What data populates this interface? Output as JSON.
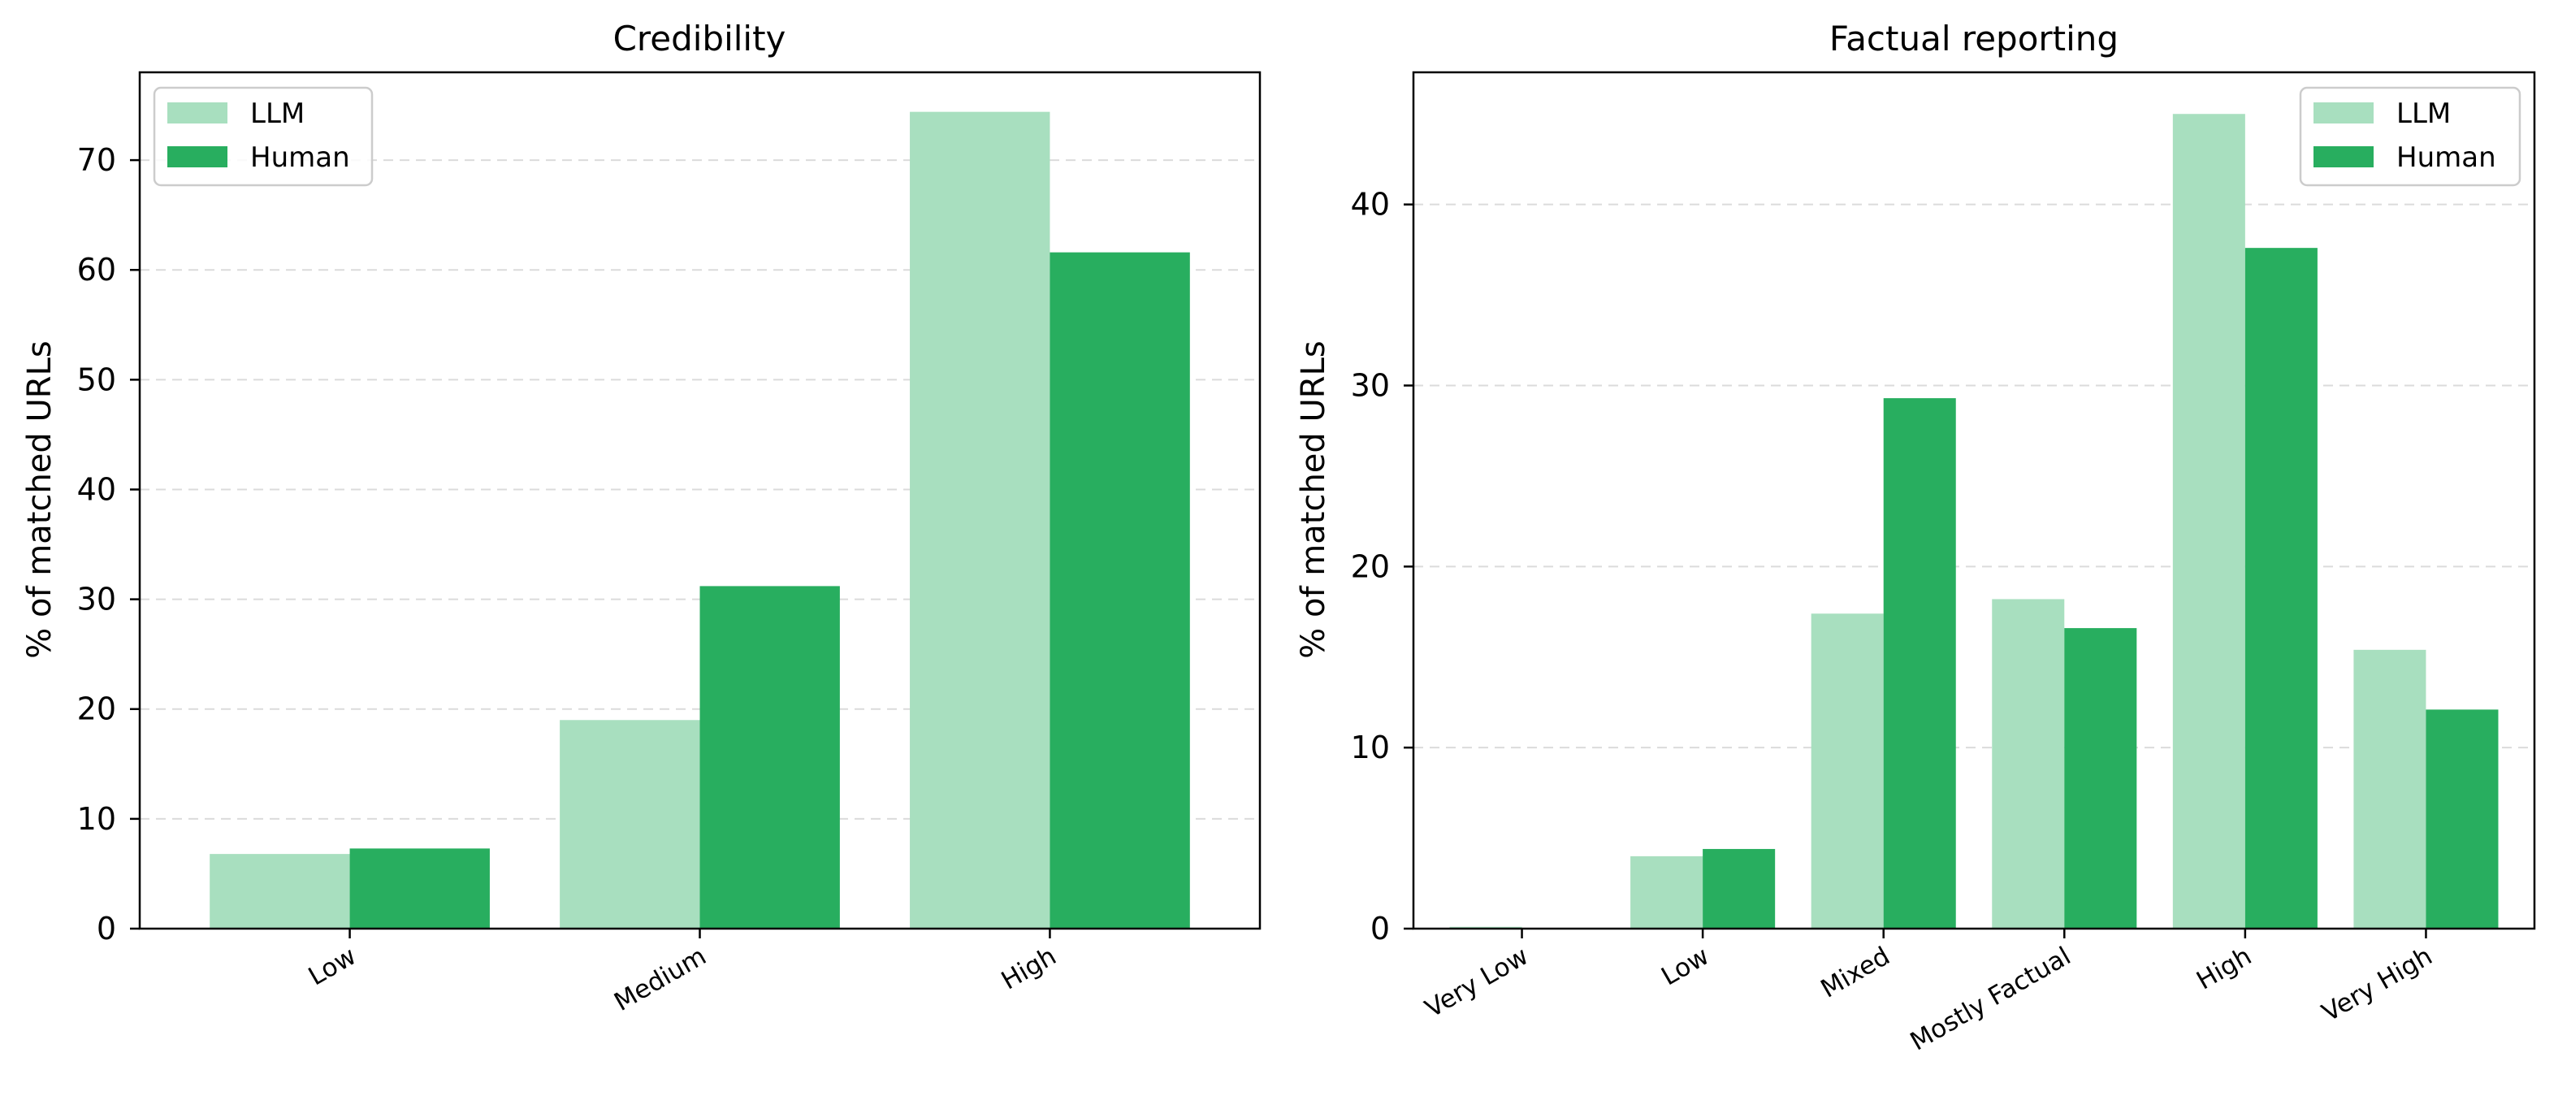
{
  "chart_data": [
    {
      "type": "bar",
      "title": "Credibility",
      "xlabel": "",
      "ylabel": "% of matched URLs",
      "categories": [
        "Low",
        "Medium",
        "High"
      ],
      "series": [
        {
          "name": "LLM",
          "values": [
            6.8,
            19.0,
            74.4
          ]
        },
        {
          "name": "Human",
          "values": [
            7.3,
            31.2,
            61.6
          ]
        }
      ],
      "ylim": [
        0,
        78
      ],
      "yticks": [
        0,
        10,
        20,
        30,
        40,
        50,
        60,
        70
      ],
      "legend": "top-left",
      "grid": "y-dashed"
    },
    {
      "type": "bar",
      "title": "Factual reporting",
      "xlabel": "",
      "ylabel": "% of matched URLs",
      "categories": [
        "Very Low",
        "Low",
        "Mixed",
        "Mostly Factual",
        "High",
        "Very High"
      ],
      "series": [
        {
          "name": "LLM",
          "values": [
            0.1,
            4.0,
            17.4,
            18.2,
            45.0,
            15.4
          ]
        },
        {
          "name": "Human",
          "values": [
            0.0,
            4.4,
            29.3,
            16.6,
            37.6,
            12.1
          ]
        }
      ],
      "ylim": [
        0,
        47.3
      ],
      "yticks": [
        0,
        10,
        20,
        30,
        40
      ],
      "legend": "top-right",
      "grid": "y-dashed"
    }
  ],
  "colors": {
    "LLM": "#a8dfbf",
    "Human": "#28ae5f"
  }
}
